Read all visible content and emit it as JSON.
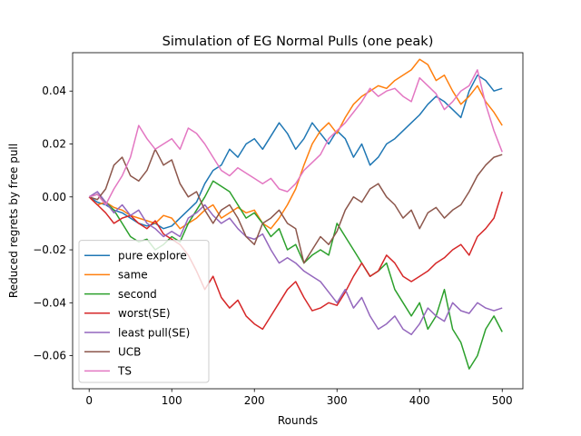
{
  "chart_data": {
    "type": "line",
    "title": "Simulation of EG Normal Pulls (one peak)",
    "xlabel": "Rounds",
    "ylabel": "Reduced regrets by free pull",
    "xlim": [
      -20,
      525
    ],
    "ylim": [
      -0.0725,
      0.0545
    ],
    "xticks": [
      0,
      100,
      200,
      300,
      400,
      500
    ],
    "xtick_labels": [
      "0",
      "100",
      "200",
      "300",
      "400",
      "500"
    ],
    "yticks": [
      -0.06,
      -0.04,
      -0.02,
      0.0,
      0.02,
      0.04
    ],
    "ytick_labels": [
      "−0.06",
      "−0.04",
      "−0.02",
      "0.00",
      "0.02",
      "0.04"
    ],
    "grid": false,
    "legend_position": "lower-left",
    "series": [
      {
        "name": "pure explore",
        "color": "#1f77b4",
        "x": [
          0,
          10,
          20,
          30,
          40,
          50,
          60,
          70,
          80,
          90,
          100,
          110,
          120,
          130,
          140,
          150,
          160,
          170,
          180,
          190,
          200,
          210,
          220,
          230,
          240,
          250,
          260,
          270,
          280,
          290,
          300,
          310,
          320,
          330,
          340,
          350,
          360,
          370,
          380,
          390,
          400,
          410,
          420,
          430,
          440,
          450,
          460,
          470,
          480,
          490,
          500
        ],
        "y": [
          0,
          -0.002,
          -0.003,
          -0.005,
          -0.006,
          -0.008,
          -0.01,
          -0.011,
          -0.01,
          -0.012,
          -0.011,
          -0.008,
          -0.005,
          -0.002,
          0.005,
          0.01,
          0.012,
          0.018,
          0.015,
          0.02,
          0.022,
          0.018,
          0.023,
          0.028,
          0.024,
          0.018,
          0.022,
          0.028,
          0.024,
          0.02,
          0.025,
          0.022,
          0.015,
          0.02,
          0.012,
          0.015,
          0.02,
          0.022,
          0.025,
          0.028,
          0.031,
          0.035,
          0.038,
          0.036,
          0.033,
          0.03,
          0.04,
          0.046,
          0.044,
          0.04,
          0.041
        ]
      },
      {
        "name": "same",
        "color": "#ff7f0e",
        "x": [
          0,
          10,
          20,
          30,
          40,
          50,
          60,
          70,
          80,
          90,
          100,
          110,
          120,
          130,
          140,
          150,
          160,
          170,
          180,
          190,
          200,
          210,
          220,
          230,
          240,
          250,
          260,
          270,
          280,
          290,
          300,
          310,
          320,
          330,
          340,
          350,
          360,
          370,
          380,
          390,
          400,
          410,
          420,
          430,
          440,
          450,
          460,
          470,
          480,
          490,
          500
        ],
        "y": [
          0,
          -0.003,
          -0.002,
          -0.004,
          -0.005,
          -0.007,
          -0.008,
          -0.009,
          -0.01,
          -0.007,
          -0.008,
          -0.012,
          -0.01,
          -0.008,
          -0.005,
          -0.003,
          -0.008,
          -0.006,
          -0.004,
          -0.006,
          -0.005,
          -0.01,
          -0.012,
          -0.008,
          -0.003,
          0.003,
          0.012,
          0.02,
          0.025,
          0.028,
          0.024,
          0.03,
          0.035,
          0.038,
          0.04,
          0.042,
          0.041,
          0.044,
          0.046,
          0.048,
          0.052,
          0.05,
          0.044,
          0.046,
          0.04,
          0.035,
          0.038,
          0.042,
          0.036,
          0.032,
          0.027
        ]
      },
      {
        "name": "second",
        "color": "#2ca02c",
        "x": [
          0,
          10,
          20,
          30,
          40,
          50,
          60,
          70,
          80,
          90,
          100,
          110,
          120,
          130,
          140,
          150,
          160,
          170,
          180,
          190,
          200,
          210,
          220,
          230,
          240,
          250,
          260,
          270,
          280,
          290,
          300,
          310,
          320,
          330,
          340,
          350,
          360,
          370,
          380,
          390,
          400,
          410,
          420,
          430,
          440,
          450,
          460,
          470,
          480,
          490,
          500
        ],
        "y": [
          0,
          0.001,
          -0.002,
          -0.005,
          -0.01,
          -0.015,
          -0.017,
          -0.016,
          -0.02,
          -0.018,
          -0.015,
          -0.017,
          -0.01,
          -0.005,
          0.0,
          0.006,
          0.004,
          0.002,
          -0.003,
          -0.008,
          -0.006,
          -0.01,
          -0.015,
          -0.012,
          -0.02,
          -0.018,
          -0.025,
          -0.022,
          -0.02,
          -0.022,
          -0.01,
          -0.015,
          -0.02,
          -0.025,
          -0.03,
          -0.028,
          -0.025,
          -0.035,
          -0.04,
          -0.045,
          -0.04,
          -0.05,
          -0.045,
          -0.035,
          -0.05,
          -0.055,
          -0.065,
          -0.06,
          -0.05,
          -0.045,
          -0.051
        ]
      },
      {
        "name": "worst(SE)",
        "color": "#d62728",
        "x": [
          0,
          10,
          20,
          30,
          40,
          50,
          60,
          70,
          80,
          90,
          100,
          110,
          120,
          130,
          140,
          150,
          160,
          170,
          180,
          190,
          200,
          210,
          220,
          230,
          240,
          250,
          260,
          270,
          280,
          290,
          300,
          310,
          320,
          330,
          340,
          350,
          360,
          370,
          380,
          390,
          400,
          410,
          420,
          430,
          440,
          450,
          460,
          470,
          480,
          490,
          500
        ],
        "y": [
          0,
          -0.003,
          -0.006,
          -0.01,
          -0.008,
          -0.007,
          -0.01,
          -0.012,
          -0.009,
          -0.014,
          -0.016,
          -0.018,
          -0.022,
          -0.028,
          -0.035,
          -0.03,
          -0.038,
          -0.042,
          -0.039,
          -0.045,
          -0.048,
          -0.05,
          -0.045,
          -0.04,
          -0.035,
          -0.032,
          -0.038,
          -0.043,
          -0.042,
          -0.04,
          -0.041,
          -0.036,
          -0.03,
          -0.025,
          -0.03,
          -0.028,
          -0.022,
          -0.025,
          -0.03,
          -0.032,
          -0.03,
          -0.028,
          -0.025,
          -0.023,
          -0.02,
          -0.018,
          -0.022,
          -0.015,
          -0.012,
          -0.008,
          0.002
        ]
      },
      {
        "name": "least pull(SE)",
        "color": "#9467bd",
        "x": [
          0,
          10,
          20,
          30,
          40,
          50,
          60,
          70,
          80,
          90,
          100,
          110,
          120,
          130,
          140,
          150,
          160,
          170,
          180,
          190,
          200,
          210,
          220,
          230,
          240,
          250,
          260,
          270,
          280,
          290,
          300,
          310,
          320,
          330,
          340,
          350,
          360,
          370,
          380,
          390,
          400,
          410,
          420,
          430,
          440,
          450,
          460,
          470,
          480,
          490,
          500
        ],
        "y": [
          0,
          0.002,
          -0.002,
          -0.006,
          -0.003,
          -0.007,
          -0.005,
          -0.01,
          -0.012,
          -0.015,
          -0.013,
          -0.015,
          -0.008,
          -0.006,
          -0.003,
          -0.007,
          -0.01,
          -0.008,
          -0.012,
          -0.015,
          -0.016,
          -0.014,
          -0.02,
          -0.025,
          -0.023,
          -0.025,
          -0.028,
          -0.03,
          -0.032,
          -0.036,
          -0.04,
          -0.035,
          -0.042,
          -0.038,
          -0.045,
          -0.05,
          -0.048,
          -0.045,
          -0.05,
          -0.052,
          -0.048,
          -0.042,
          -0.045,
          -0.047,
          -0.04,
          -0.043,
          -0.044,
          -0.04,
          -0.042,
          -0.043,
          -0.042
        ]
      },
      {
        "name": "UCB",
        "color": "#8c564b",
        "x": [
          0,
          10,
          20,
          30,
          40,
          50,
          60,
          70,
          80,
          90,
          100,
          110,
          120,
          130,
          140,
          150,
          160,
          170,
          180,
          190,
          200,
          210,
          220,
          230,
          240,
          250,
          260,
          270,
          280,
          290,
          300,
          310,
          320,
          330,
          340,
          350,
          360,
          370,
          380,
          390,
          400,
          410,
          420,
          430,
          440,
          450,
          460,
          470,
          480,
          490,
          500
        ],
        "y": [
          0,
          -0.001,
          0.003,
          0.012,
          0.015,
          0.008,
          0.006,
          0.01,
          0.018,
          0.012,
          0.014,
          0.005,
          0.0,
          0.002,
          -0.005,
          -0.01,
          -0.005,
          -0.003,
          -0.008,
          -0.015,
          -0.018,
          -0.01,
          -0.008,
          -0.005,
          -0.01,
          -0.012,
          -0.025,
          -0.02,
          -0.015,
          -0.018,
          -0.013,
          -0.005,
          0.0,
          -0.002,
          0.003,
          0.005,
          0.0,
          -0.003,
          -0.008,
          -0.005,
          -0.012,
          -0.006,
          -0.004,
          -0.008,
          -0.005,
          -0.003,
          0.002,
          0.008,
          0.012,
          0.015,
          0.016
        ]
      },
      {
        "name": "TS",
        "color": "#e377c2",
        "x": [
          0,
          10,
          20,
          30,
          40,
          50,
          60,
          70,
          80,
          90,
          100,
          110,
          120,
          130,
          140,
          150,
          160,
          170,
          180,
          190,
          200,
          210,
          220,
          230,
          240,
          250,
          260,
          270,
          280,
          290,
          300,
          310,
          320,
          330,
          340,
          350,
          360,
          370,
          380,
          390,
          400,
          410,
          420,
          430,
          440,
          450,
          460,
          470,
          480,
          490,
          500
        ],
        "y": [
          0,
          0.001,
          -0.003,
          0.003,
          0.008,
          0.015,
          0.027,
          0.022,
          0.018,
          0.02,
          0.022,
          0.018,
          0.026,
          0.024,
          0.02,
          0.015,
          0.01,
          0.008,
          0.011,
          0.009,
          0.007,
          0.005,
          0.007,
          0.003,
          0.002,
          0.005,
          0.01,
          0.013,
          0.016,
          0.022,
          0.025,
          0.028,
          0.032,
          0.036,
          0.041,
          0.038,
          0.04,
          0.041,
          0.038,
          0.036,
          0.045,
          0.042,
          0.039,
          0.033,
          0.036,
          0.04,
          0.042,
          0.048,
          0.035,
          0.025,
          0.017
        ]
      }
    ]
  }
}
